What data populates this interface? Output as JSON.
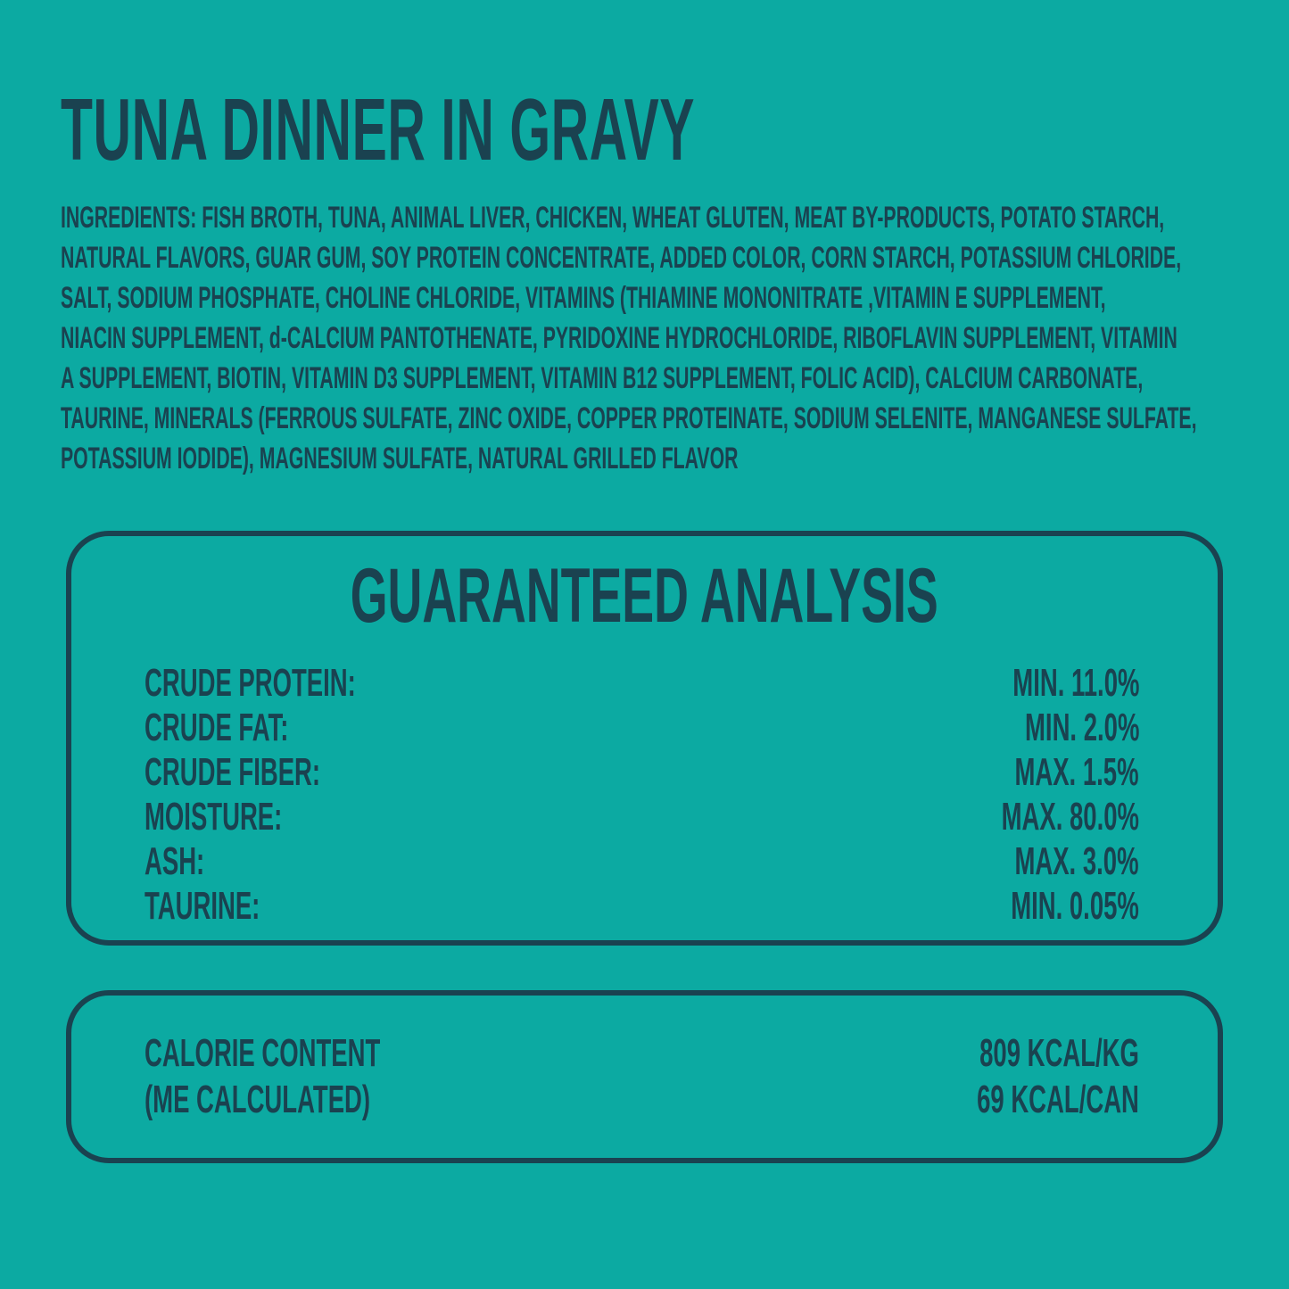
{
  "colors": {
    "background": "#0caaa2",
    "ink": "#1a4250"
  },
  "title": "TUNA DINNER IN GRAVY",
  "ingredients": {
    "lines": [
      "INGREDIENTS: FISH BROTH, TUNA, ANIMAL LIVER, CHICKEN, WHEAT GLUTEN, MEAT BY-PRODUCTS, POTATO STARCH,",
      "NATURAL FLAVORS, GUAR GUM, SOY PROTEIN CONCENTRATE, ADDED COLOR, CORN STARCH, POTASSIUM CHLORIDE,",
      "SALT, SODIUM PHOSPHATE, CHOLINE CHLORIDE, VITAMINS (THIAMINE MONONITRATE ,VITAMIN E SUPPLEMENT,",
      "NIACIN SUPPLEMENT, d-CALCIUM PANTOTHENATE, PYRIDOXINE HYDROCHLORIDE, RIBOFLAVIN SUPPLEMENT, VITAMIN",
      "A SUPPLEMENT, BIOTIN, VITAMIN D3 SUPPLEMENT, VITAMIN B12 SUPPLEMENT, FOLIC ACID), CALCIUM CARBONATE,",
      "TAURINE, MINERALS (FERROUS SULFATE, ZINC OXIDE, COPPER PROTEINATE, SODIUM SELENITE, MANGANESE SULFATE,",
      "POTASSIUM IODIDE), MAGNESIUM SULFATE, NATURAL GRILLED FLAVOR"
    ]
  },
  "guaranteed_analysis": {
    "heading": "GUARANTEED ANALYSIS",
    "rows": [
      {
        "label": "CRUDE PROTEIN:",
        "value": "MIN. 11.0%"
      },
      {
        "label": "CRUDE FAT:",
        "value": "MIN. 2.0%"
      },
      {
        "label": "CRUDE FIBER:",
        "value": "MAX. 1.5%"
      },
      {
        "label": "MOISTURE:",
        "value": "MAX. 80.0%"
      },
      {
        "label": "ASH:",
        "value": "MAX. 3.0%"
      },
      {
        "label": "TAURINE:",
        "value": "MIN. 0.05%"
      }
    ]
  },
  "calorie_content": {
    "label_lines": [
      "CALORIE CONTENT",
      "(ME CALCULATED)"
    ],
    "value_lines": [
      "809 KCAL/KG",
      "69 KCAL/CAN"
    ]
  }
}
